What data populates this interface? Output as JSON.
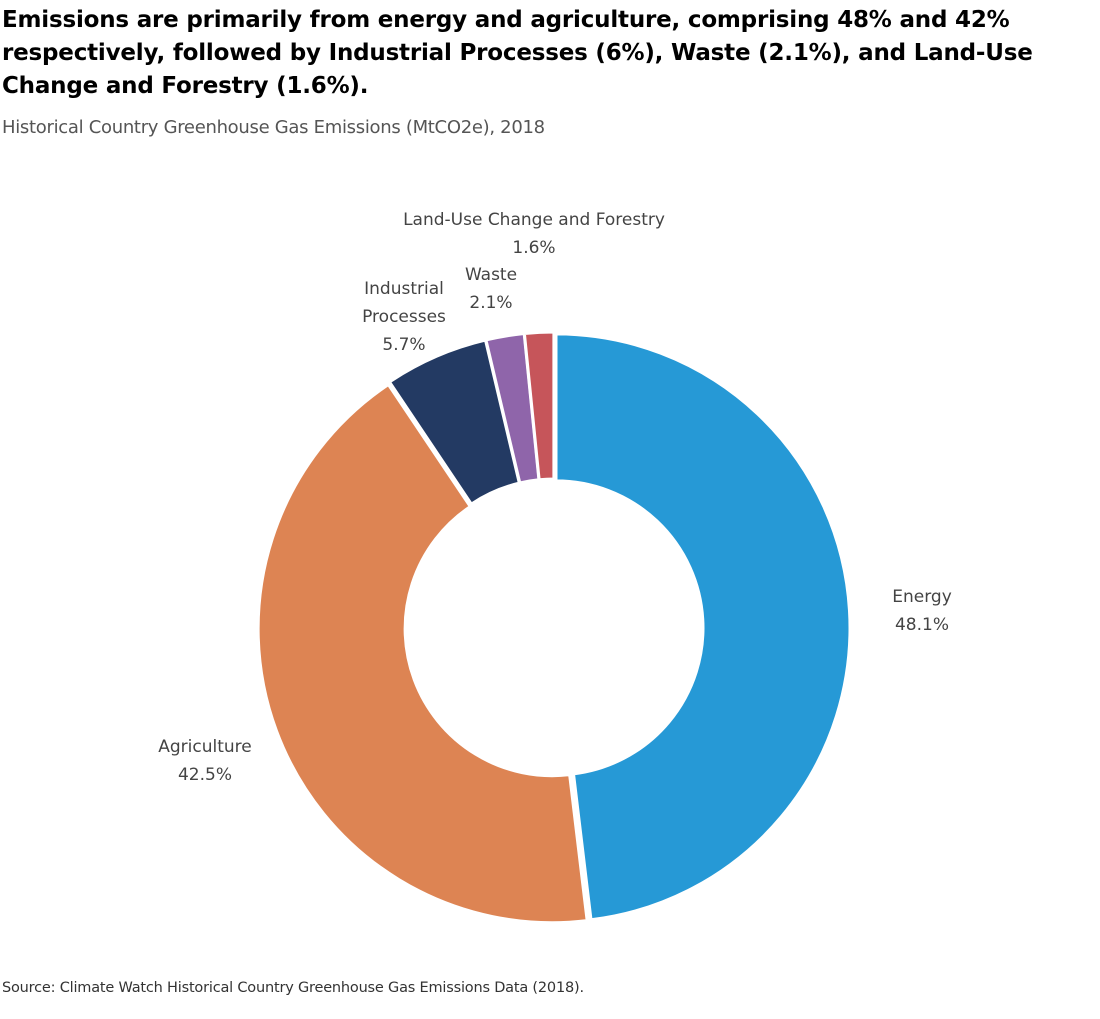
{
  "header": {
    "title": "Emissions are primarily from energy and agriculture, comprising 48% and 42% respectively, followed by Industrial Processes (6%), Waste (2.1%), and Land-Use Change and Forestry (1.6%).",
    "subtitle": "Historical Country Greenhouse Gas Emissions (MtCO2e), 2018"
  },
  "footer": {
    "source": "Source: Climate Watch Historical Country Greenhouse Gas Emissions Data (2018)."
  },
  "chart_data": {
    "type": "pie",
    "variant": "donut",
    "title": "Historical Country Greenhouse Gas Emissions (MtCO2e), 2018",
    "categories": [
      "Energy",
      "Agriculture",
      "Industrial Processes",
      "Waste",
      "Land-Use Change and Forestry"
    ],
    "values": [
      48.1,
      42.5,
      5.7,
      2.1,
      1.6
    ],
    "value_labels": [
      "48.1%",
      "42.5%",
      "5.7%",
      "2.1%",
      "1.6%"
    ],
    "label_lines": [
      [
        "Energy"
      ],
      [
        "Agriculture"
      ],
      [
        "Industrial",
        "Processes"
      ],
      [
        "Waste"
      ],
      [
        "Land-Use Change and Forestry"
      ]
    ],
    "colors": [
      "#2699D6",
      "#DD8453",
      "#233A63",
      "#8F65AA",
      "#C6555A"
    ],
    "start": "12 o'clock",
    "direction": "clockwise",
    "legend": "none",
    "grid": false
  }
}
